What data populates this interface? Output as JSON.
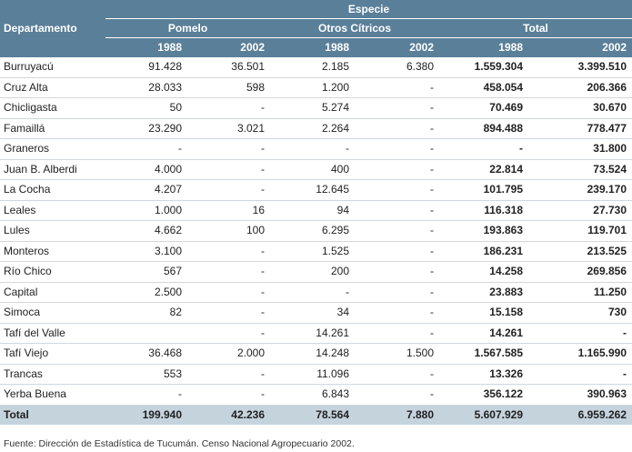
{
  "header": {
    "departamento": "Departamento",
    "especie": "Especie",
    "groups": [
      "Pomelo",
      "Otros Cítricos",
      "Total"
    ],
    "years": [
      "1988",
      "2002"
    ]
  },
  "rows": [
    {
      "name": "Burruyacú",
      "values": [
        "91.428",
        "36.501",
        "2.185",
        "6.380",
        "1.559.304",
        "3.399.510"
      ]
    },
    {
      "name": "Cruz Alta",
      "values": [
        "28.033",
        "598",
        "1.200",
        "-",
        "458.054",
        "206.366"
      ]
    },
    {
      "name": "Chicligasta",
      "values": [
        "50",
        "-",
        "5.274",
        "-",
        "70.469",
        "30.670"
      ]
    },
    {
      "name": "Famaillá",
      "values": [
        "23.290",
        "3.021",
        "2.264",
        "-",
        "894.488",
        "778.477"
      ]
    },
    {
      "name": "Graneros",
      "values": [
        "-",
        "-",
        "-",
        "-",
        "-",
        "31.800"
      ]
    },
    {
      "name": "Juan B. Alberdi",
      "values": [
        "4.000",
        "-",
        "400",
        "-",
        "22.814",
        "73.524"
      ]
    },
    {
      "name": "La Cocha",
      "values": [
        "4.207",
        "-",
        "12.645",
        "-",
        "101.795",
        "239.170"
      ]
    },
    {
      "name": "Leales",
      "values": [
        "1.000",
        "16",
        "94",
        "-",
        "116.318",
        "27.730"
      ]
    },
    {
      "name": "Lules",
      "values": [
        "4.662",
        "100",
        "6.295",
        "-",
        "193.863",
        "119.701"
      ]
    },
    {
      "name": "Monteros",
      "values": [
        "3.100",
        "-",
        "1.525",
        "-",
        "186.231",
        "213.525"
      ]
    },
    {
      "name": "Río Chico",
      "values": [
        "567",
        "-",
        "200",
        "-",
        "14.258",
        "269.856"
      ]
    },
    {
      "name": "Capital",
      "values": [
        "2.500",
        "-",
        "-",
        "-",
        "23.883",
        "11.250"
      ]
    },
    {
      "name": "Simoca",
      "values": [
        "82",
        "-",
        "34",
        "-",
        "15.158",
        "730"
      ]
    },
    {
      "name": "Tafí del Valle",
      "values": [
        "",
        "-",
        "14.261",
        "-",
        "14.261",
        "-"
      ]
    },
    {
      "name": "Tafí Viejo",
      "values": [
        "36.468",
        "2.000",
        "14.248",
        "1.500",
        "1.567.585",
        "1.165.990"
      ]
    },
    {
      "name": "Trancas",
      "values": [
        "553",
        "-",
        "11.096",
        "-",
        "13.326",
        "-"
      ]
    },
    {
      "name": "Yerba Buena",
      "values": [
        "-",
        "-",
        "6.843",
        "-",
        "356.122",
        "390.963"
      ]
    }
  ],
  "total": {
    "name": "Total",
    "values": [
      "199.940",
      "42.236",
      "78.564",
      "7.880",
      "5.607.929",
      "6.959.262"
    ]
  },
  "source": "Fuente: Dirección de Estadística de Tucumán. Censo Nacional Agropecuario 2002."
}
